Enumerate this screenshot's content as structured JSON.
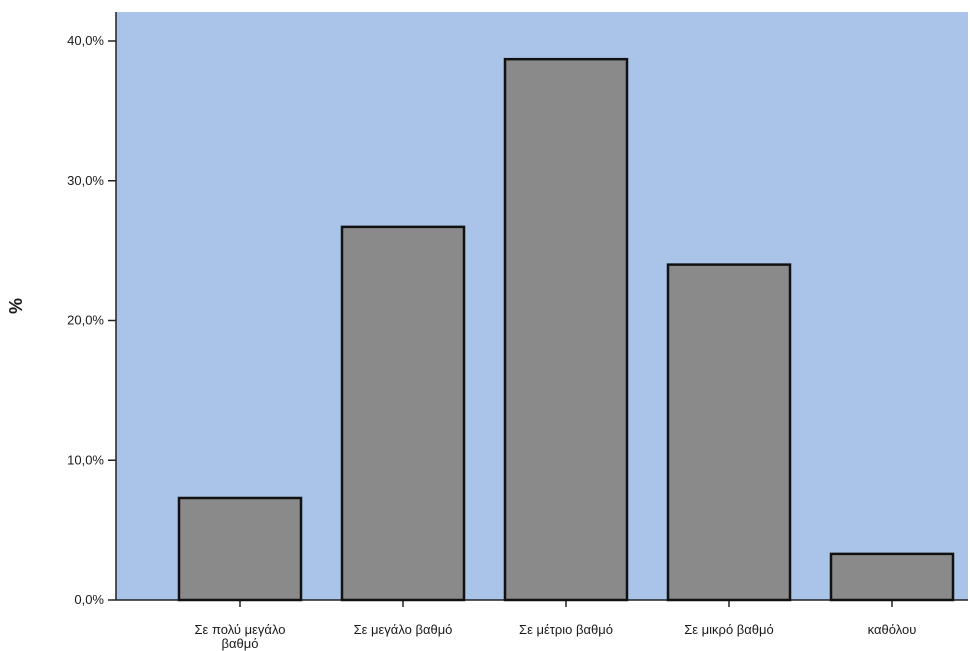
{
  "chart_data": {
    "type": "bar",
    "title": "",
    "xlabel": "",
    "ylabel": "%",
    "ylim": [
      0,
      40
    ],
    "yticks": [
      0,
      10,
      20,
      30,
      40
    ],
    "ytick_labels": [
      "0,0%",
      "10,0%",
      "20,0%",
      "30,0%",
      "40,0%"
    ],
    "categories": [
      [
        "Σε πολύ μεγάλο",
        "βαθμό"
      ],
      [
        "Σε μεγάλο βαθμό"
      ],
      [
        "Σε μέτριο βαθμό"
      ],
      [
        "Σε μικρό βαθμό"
      ],
      [
        "καθόλου"
      ]
    ],
    "values": [
      7.3,
      26.7,
      38.7,
      24.0,
      3.3
    ],
    "grid": false,
    "colors": {
      "plot_background": "#a9c4e8",
      "bar_fill": "#8a8a8a",
      "bar_stroke": "#111111",
      "axis": "#222222"
    }
  }
}
